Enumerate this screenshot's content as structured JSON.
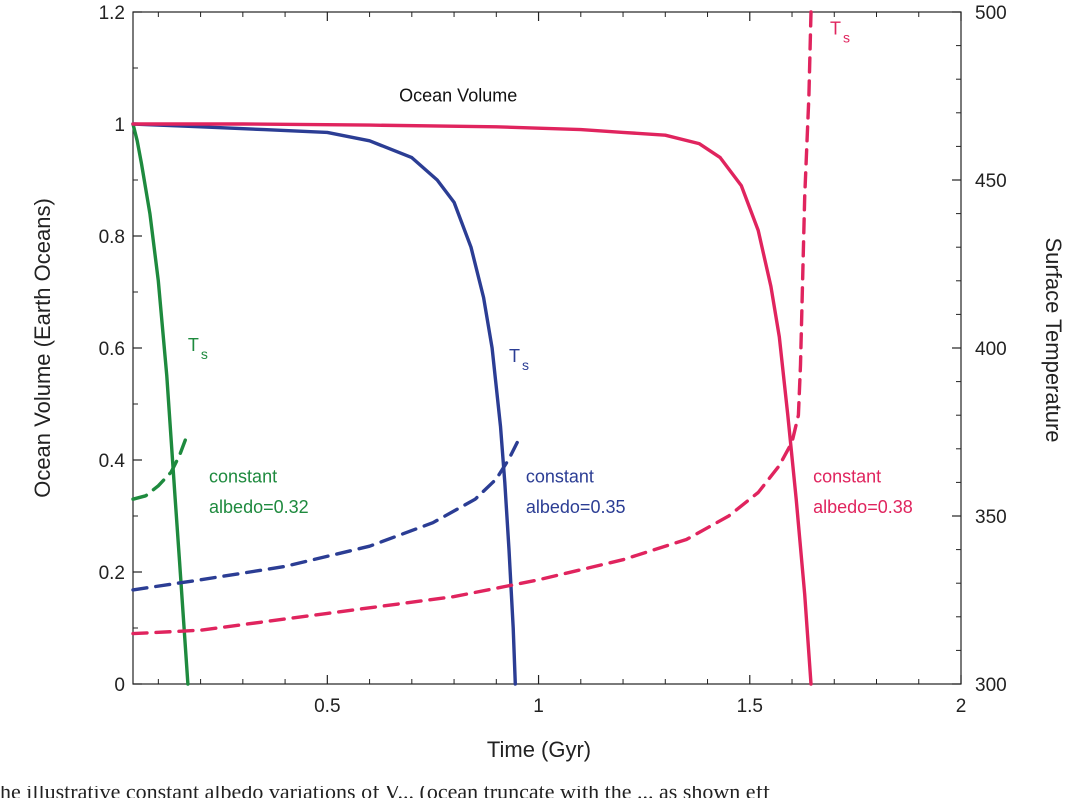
{
  "chart_data": {
    "type": "line",
    "xlabel": "Time (Gyr)",
    "ylabel": "Ocean Volume (Earth Oceans)",
    "y2label": "Surface Temperature",
    "xlim": [
      0.04,
      2.0
    ],
    "ylim": [
      0,
      1.2
    ],
    "y2lim": [
      300,
      500
    ],
    "x_ticks": [
      0.5,
      1,
      1.5,
      2
    ],
    "x_tick_labels": [
      "0.5",
      "1",
      "1.5",
      "2"
    ],
    "y_ticks": [
      0,
      0.2,
      0.4,
      0.6,
      0.8,
      1,
      1.2
    ],
    "y_tick_labels": [
      "0",
      "0.2",
      "0.4",
      "0.6",
      "0.8",
      "1",
      "1.2"
    ],
    "y2_ticks": [
      300,
      350,
      400,
      450,
      500
    ],
    "y2_tick_labels": [
      "300",
      "350",
      "400",
      "450",
      "500"
    ],
    "grid": false,
    "series": [
      {
        "axis": "left",
        "style": "solid",
        "color": "#1e8a3e",
        "x": [
          0.04,
          0.05,
          0.06,
          0.08,
          0.1,
          0.12,
          0.13,
          0.14,
          0.15,
          0.16,
          0.17
        ],
        "y": [
          1.0,
          0.97,
          0.93,
          0.84,
          0.72,
          0.55,
          0.44,
          0.33,
          0.22,
          0.11,
          0.0
        ]
      },
      {
        "axis": "right",
        "style": "dashed",
        "color": "#1e8a3e",
        "x": [
          0.04,
          0.07,
          0.1,
          0.13,
          0.15,
          0.165
        ],
        "y": [
          355,
          356,
          359,
          363,
          368,
          373
        ]
      },
      {
        "axis": "left",
        "style": "solid",
        "color": "#2b3d94",
        "x": [
          0.04,
          0.2,
          0.35,
          0.5,
          0.6,
          0.7,
          0.76,
          0.8,
          0.84,
          0.87,
          0.89,
          0.91,
          0.92,
          0.93,
          0.94,
          0.945
        ],
        "y": [
          1.0,
          0.995,
          0.99,
          0.985,
          0.97,
          0.94,
          0.9,
          0.86,
          0.78,
          0.69,
          0.6,
          0.46,
          0.36,
          0.24,
          0.1,
          0.0
        ]
      },
      {
        "axis": "right",
        "style": "dashed",
        "color": "#2b3d94",
        "x": [
          0.04,
          0.2,
          0.4,
          0.6,
          0.75,
          0.85,
          0.9,
          0.93,
          0.95
        ],
        "y": [
          328,
          331,
          335,
          341,
          348,
          355,
          361,
          367,
          372
        ]
      },
      {
        "axis": "left",
        "style": "solid",
        "color": "#e0245e",
        "x": [
          0.04,
          0.3,
          0.6,
          0.9,
          1.1,
          1.2,
          1.3,
          1.38,
          1.43,
          1.48,
          1.52,
          1.55,
          1.57,
          1.59,
          1.61,
          1.63,
          1.645
        ],
        "y": [
          1.0,
          1.0,
          0.998,
          0.995,
          0.99,
          0.985,
          0.98,
          0.965,
          0.94,
          0.89,
          0.81,
          0.71,
          0.62,
          0.48,
          0.33,
          0.16,
          0.0
        ]
      },
      {
        "axis": "right",
        "style": "dashed",
        "color": "#e0245e",
        "x": [
          0.04,
          0.2,
          0.5,
          0.8,
          1.0,
          1.2,
          1.35,
          1.45,
          1.52,
          1.57,
          1.6,
          1.615,
          1.62,
          1.625,
          1.63,
          1.64,
          1.645
        ],
        "y": [
          315,
          316,
          321,
          326,
          331,
          337,
          343,
          350,
          357,
          365,
          372,
          380,
          395,
          420,
          445,
          475,
          500
        ]
      }
    ],
    "annotations": [
      {
        "text": "Ocean Volume",
        "x": 0.67,
        "y": 1.04,
        "axis": "left",
        "color": "#111111"
      },
      {
        "text": "T",
        "sub": "s",
        "x": 0.17,
        "y": 0.595,
        "axis": "left",
        "color": "#1e8a3e"
      },
      {
        "text": "T",
        "sub": "s",
        "x": 0.93,
        "y": 0.575,
        "axis": "left",
        "color": "#2b3d94"
      },
      {
        "text": "T",
        "sub": "s",
        "x": 1.69,
        "y": 1.16,
        "axis": "left",
        "color": "#e0245e"
      },
      {
        "text": "constant",
        "x": 0.22,
        "y": 0.36,
        "axis": "left",
        "color": "#1e8a3e"
      },
      {
        "text": "albedo=0.32",
        "x": 0.22,
        "y": 0.305,
        "axis": "left",
        "color": "#1e8a3e"
      },
      {
        "text": "constant",
        "x": 0.97,
        "y": 0.36,
        "axis": "left",
        "color": "#2b3d94"
      },
      {
        "text": "albedo=0.35",
        "x": 0.97,
        "y": 0.305,
        "axis": "left",
        "color": "#2b3d94"
      },
      {
        "text": "constant",
        "x": 1.65,
        "y": 0.36,
        "axis": "left",
        "color": "#e0245e"
      },
      {
        "text": "albedo=0.38",
        "x": 1.65,
        "y": 0.305,
        "axis": "left",
        "color": "#e0245e"
      }
    ]
  },
  "caption_text": "he illustrative constant albedo variations of V... (ocean truncate with the ... as shown eff"
}
